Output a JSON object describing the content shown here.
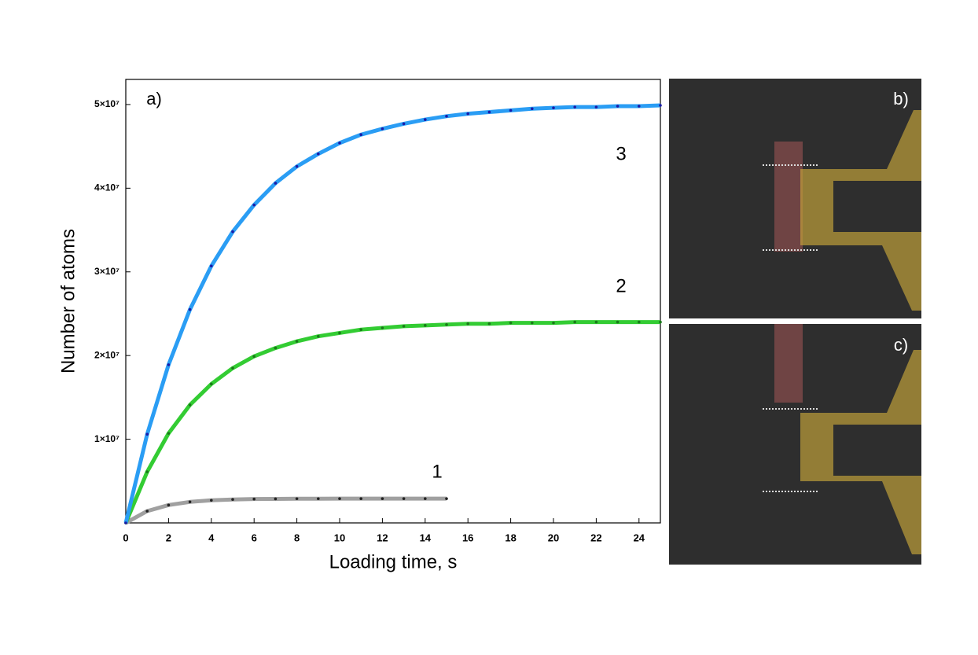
{
  "chart_data": {
    "type": "line",
    "x_label": "Loading time, s",
    "y_label": "Number of atoms",
    "annotations": [
      "a)",
      "b)",
      "c)"
    ],
    "x": [
      0,
      1,
      2,
      3,
      4,
      5,
      6,
      7,
      8,
      9,
      10,
      11,
      12,
      13,
      14,
      15,
      16,
      17,
      18,
      19,
      20,
      21,
      22,
      23,
      24,
      25
    ],
    "series": [
      {
        "name": "1",
        "color": "#a0a0a0",
        "marker_color": "#222222",
        "values": [
          0,
          1410000,
          2130000,
          2510000,
          2700000,
          2800000,
          2850000,
          2870000,
          2890000,
          2890000,
          2900000,
          2900000,
          2900000,
          2900000,
          2900000,
          2900000,
          null,
          null,
          null,
          null,
          null,
          null,
          null,
          null,
          null,
          null
        ]
      },
      {
        "name": "2",
        "color": "#33cc33",
        "marker_color": "#1a7a1a",
        "values": [
          0,
          6100000,
          10700000,
          14100000,
          16600000,
          18500000,
          19900000,
          20900000,
          21700000,
          22300000,
          22700000,
          23100000,
          23300000,
          23500000,
          23600000,
          23700000,
          23800000,
          23800000,
          23900000,
          23900000,
          23900000,
          24000000,
          24000000,
          24000000,
          24000000,
          24000000
        ]
      },
      {
        "name": "3",
        "color": "#2a9df4",
        "marker_color": "#1a1aa8",
        "values": [
          0,
          10600000,
          18900000,
          25500000,
          30700000,
          34800000,
          38000000,
          40600000,
          42600000,
          44100000,
          45400000,
          46400000,
          47100000,
          47700000,
          48200000,
          48600000,
          48900000,
          49100000,
          49300000,
          49500000,
          49600000,
          49700000,
          49700000,
          49800000,
          49800000,
          49900000
        ]
      }
    ],
    "xlim": [
      0,
      25
    ],
    "xticks": [
      0,
      2,
      4,
      6,
      8,
      10,
      12,
      14,
      16,
      18,
      20,
      22,
      24
    ],
    "ylim": [
      0,
      53000000
    ],
    "yticks": [
      {
        "value": 10000000,
        "label": "1×10⁷"
      },
      {
        "value": 20000000,
        "label": "2×10⁷"
      },
      {
        "value": 30000000,
        "label": "3×10⁷"
      },
      {
        "value": 40000000,
        "label": "4×10⁷"
      },
      {
        "value": 50000000,
        "label": "5×10⁷"
      }
    ]
  }
}
